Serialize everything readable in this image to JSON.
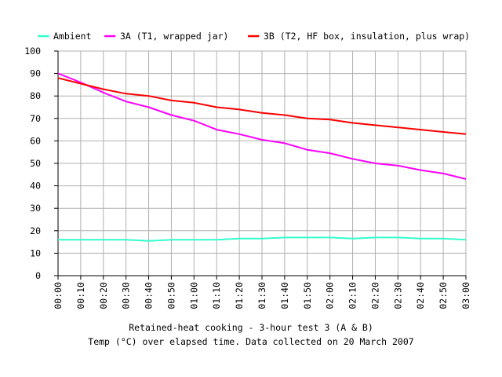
{
  "chart_data": {
    "type": "line",
    "title": "Retained-heat cooking - 3-hour test 3 (A & B)",
    "subtitle": "Temp (°C) over elapsed time. Data collected on 20 March 2007",
    "xlabel": "",
    "ylabel": "",
    "ylim": [
      0,
      100
    ],
    "yticks": [
      "0",
      "10",
      "20",
      "30",
      "40",
      "50",
      "60",
      "70",
      "80",
      "90",
      "100"
    ],
    "categories": [
      "00:00",
      "00:10",
      "00:20",
      "00:30",
      "00:40",
      "00:50",
      "01:00",
      "01:10",
      "01:20",
      "01:30",
      "01:40",
      "01:50",
      "02:00",
      "02:10",
      "02:20",
      "02:30",
      "02:40",
      "02:50",
      "03:00"
    ],
    "grid": true,
    "legend_position": "top",
    "series": [
      {
        "name": "Ambient",
        "color": "#33ffcc",
        "values": [
          16,
          16,
          16,
          16,
          15.5,
          16,
          16,
          16,
          16.5,
          16.5,
          17,
          17,
          17,
          16.5,
          17,
          17,
          16.5,
          16.5,
          16
        ]
      },
      {
        "name": "3A (T1, wrapped jar)",
        "color": "#ff00ff",
        "values": [
          90,
          86,
          81.5,
          77.5,
          75,
          71.5,
          69,
          65,
          63,
          60.5,
          59,
          56,
          54.5,
          52,
          50,
          49,
          47,
          45.5,
          43
        ]
      },
      {
        "name": "3B (T2, HF box, insulation, plus wrap)",
        "color": "#ff0000",
        "values": [
          88,
          85.5,
          83,
          81,
          80,
          78,
          77,
          75,
          74,
          72.5,
          71.5,
          70,
          69.5,
          68,
          67,
          66,
          65,
          64,
          63
        ]
      }
    ]
  }
}
